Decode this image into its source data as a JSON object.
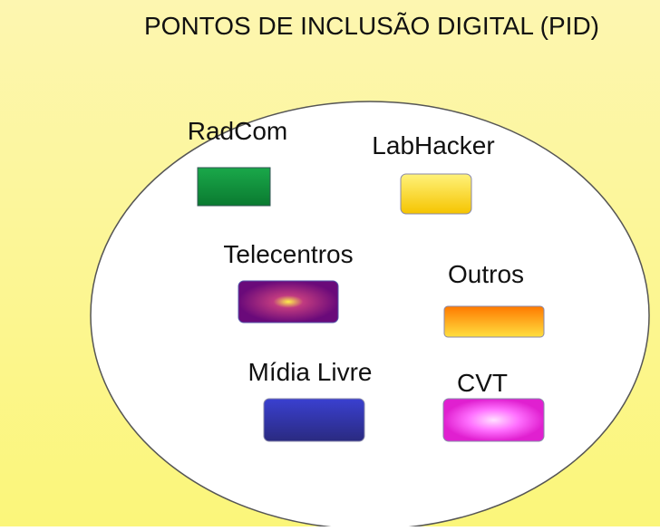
{
  "title": "PONTOS DE INCLUSÃO DIGITAL (PID)",
  "nodes": [
    {
      "label": "RadCom"
    },
    {
      "label": "LabHacker"
    },
    {
      "label": "Telecentros"
    },
    {
      "label": "Outros"
    },
    {
      "label": "Mídia Livre"
    },
    {
      "label": "CVT"
    }
  ]
}
